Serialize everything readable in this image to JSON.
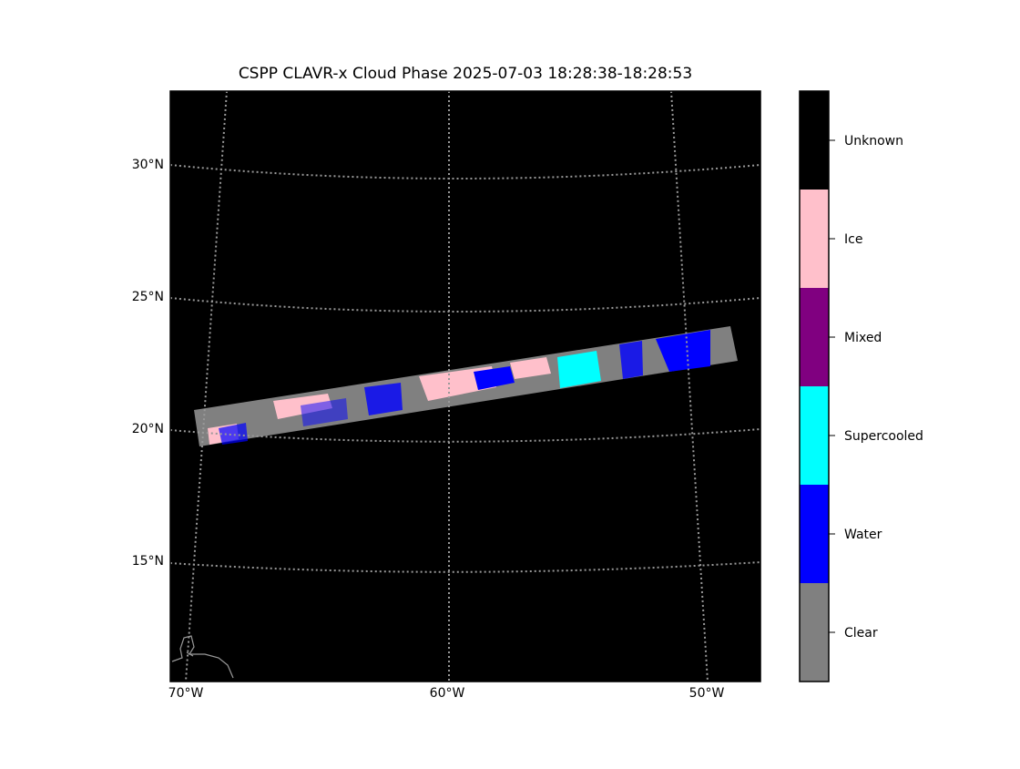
{
  "title": "CSPP CLAVR-x Cloud Phase 2025-07-03 18:28:38-18:28:53",
  "lat_labels": [
    "30°N",
    "25°N",
    "20°N",
    "15°N"
  ],
  "lon_labels": [
    "70°W",
    "60°W",
    "50°W"
  ],
  "legend": {
    "classes": [
      {
        "name": "Clear",
        "color": "#808080"
      },
      {
        "name": "Water",
        "color": "#0000ff"
      },
      {
        "name": "Supercooled",
        "color": "#00ffff"
      },
      {
        "name": "Mixed",
        "color": "#800080"
      },
      {
        "name": "Ice",
        "color": "#ffc0cb"
      },
      {
        "name": "Unknown",
        "color": "#000000"
      }
    ]
  }
}
